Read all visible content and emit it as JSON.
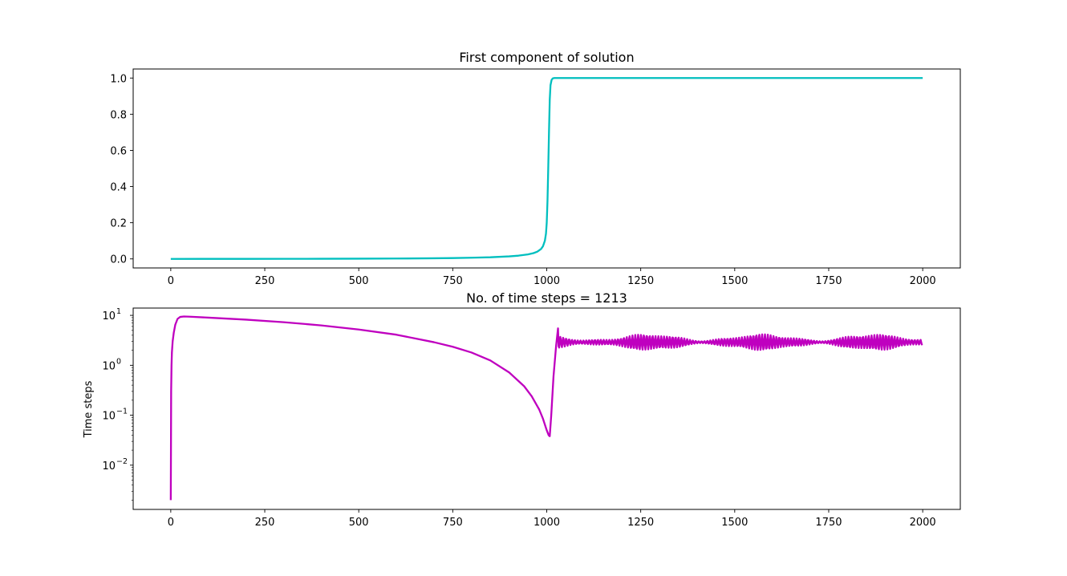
{
  "chart_data": [
    {
      "type": "line",
      "title": "First component of solution",
      "xlabel": "",
      "ylabel": "",
      "xlim": [
        -100,
        2100
      ],
      "ylim": [
        -0.05,
        1.05
      ],
      "yscale": "linear",
      "grid": false,
      "line_color": "#00bfbf",
      "xticks": [
        0,
        250,
        500,
        750,
        1000,
        1250,
        1500,
        1750,
        2000
      ],
      "xtick_labels": [
        "0",
        "250",
        "500",
        "750",
        "1000",
        "1250",
        "1500",
        "1750",
        "2000"
      ],
      "yticks": [
        0.0,
        0.2,
        0.4,
        0.6,
        0.8,
        1.0
      ],
      "ytick_labels": [
        "0.0",
        "0.2",
        "0.4",
        "0.6",
        "0.8",
        "1.0"
      ],
      "x": [
        0,
        100,
        200,
        300,
        400,
        500,
        600,
        700,
        750,
        800,
        850,
        900,
        925,
        950,
        965,
        975,
        985,
        990,
        995,
        998,
        1000,
        1002,
        1004,
        1006,
        1008,
        1010,
        1013,
        1016,
        1020,
        1030,
        1100,
        1250,
        1500,
        1750,
        2000
      ],
      "y": [
        0.0,
        0.0001,
        0.0002,
        0.0004,
        0.0007,
        0.0012,
        0.002,
        0.0035,
        0.0046,
        0.0065,
        0.009,
        0.014,
        0.018,
        0.025,
        0.032,
        0.04,
        0.055,
        0.07,
        0.1,
        0.14,
        0.2,
        0.32,
        0.5,
        0.7,
        0.88,
        0.96,
        0.99,
        0.998,
        1.0,
        1.0,
        1.0,
        1.0,
        1.0,
        1.0,
        1.0
      ]
    },
    {
      "type": "line",
      "title": "No. of time steps = 1213",
      "xlabel": "",
      "ylabel": "Time steps",
      "xlim": [
        -100,
        2100
      ],
      "ylim": [
        0.0013,
        14.0
      ],
      "yscale": "log",
      "grid": false,
      "line_color": "#bf00bf",
      "xticks": [
        0,
        250,
        500,
        750,
        1000,
        1250,
        1500,
        1750,
        2000
      ],
      "xtick_labels": [
        "0",
        "250",
        "500",
        "750",
        "1000",
        "1250",
        "1500",
        "1750",
        "2000"
      ],
      "yticks": [
        0.01,
        0.1,
        1,
        10
      ],
      "ytick_labels": [
        "10",
        "10",
        "10",
        "10"
      ],
      "ytick_exponents": [
        "−2",
        "−1",
        "0",
        "1"
      ],
      "x": [
        0,
        0.5,
        1,
        2,
        3,
        5,
        8,
        12,
        18,
        25,
        35,
        50,
        100,
        200,
        300,
        400,
        500,
        600,
        700,
        750,
        800,
        850,
        900,
        940,
        960,
        980,
        990,
        1000,
        1005,
        1008,
        1012,
        1018,
        1025,
        1030
      ],
      "y": [
        0.002,
        0.02,
        0.3,
        1.0,
        1.8,
        3.0,
        4.5,
        6.5,
        8.5,
        9.3,
        9.5,
        9.4,
        9.0,
        8.2,
        7.3,
        6.3,
        5.2,
        4.1,
        2.9,
        2.35,
        1.8,
        1.25,
        0.72,
        0.38,
        0.24,
        0.13,
        0.085,
        0.05,
        0.04,
        0.038,
        0.1,
        0.6,
        2.5,
        5.5
      ],
      "oscillation": {
        "x_start": 1030,
        "x_end": 2000,
        "center": 2.9,
        "min": 2.0,
        "max": 4.4
      }
    }
  ]
}
